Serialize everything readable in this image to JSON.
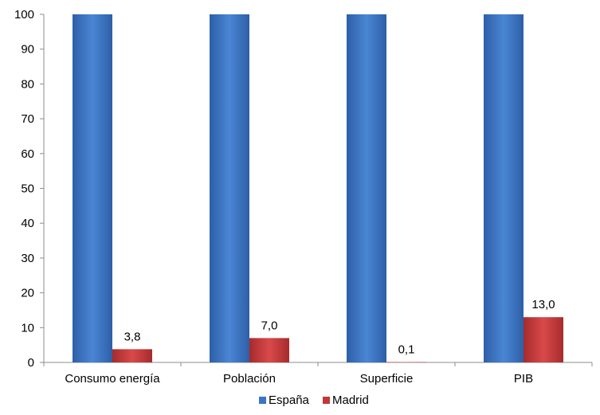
{
  "chart_data": {
    "type": "bar",
    "categories": [
      "Consumo energía",
      "Población",
      "Superficie",
      "PIB"
    ],
    "series": [
      {
        "name": "España",
        "values": [
          100,
          100,
          100,
          100
        ],
        "color": "#3b74c6"
      },
      {
        "name": "Madrid",
        "values": [
          3.8,
          7.0,
          0.1,
          13.0
        ],
        "color": "#c0393a",
        "data_labels": [
          "3,8",
          "7,0",
          "0,1",
          "13,0"
        ]
      }
    ],
    "ylim": [
      0,
      100
    ],
    "yticks": [
      0,
      10,
      20,
      30,
      40,
      50,
      60,
      70,
      80,
      90,
      100
    ],
    "grid": false,
    "legend": "bottom"
  }
}
